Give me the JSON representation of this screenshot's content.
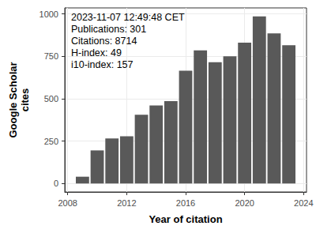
{
  "chart_data": {
    "type": "bar",
    "x": [
      2009,
      2010,
      2011,
      2012,
      2013,
      2014,
      2015,
      2016,
      2017,
      2018,
      2019,
      2020,
      2021,
      2022,
      2023
    ],
    "values": [
      40,
      195,
      265,
      278,
      405,
      460,
      485,
      665,
      785,
      715,
      750,
      830,
      985,
      885,
      815
    ],
    "color": "#595959",
    "xlabel": "Year of citation",
    "ylabel": "Google Scholar\ncites",
    "annotation": [
      "2023-11-07 12:49:48 CET",
      "Publications: 301",
      "Citations: 8714",
      "H-index: 49",
      "i10-index: 157"
    ],
    "xlim": [
      2007.8,
      2024.2
    ],
    "xticks": [
      2008,
      2012,
      2016,
      2020,
      2024
    ],
    "ylim": [
      -50,
      1035
    ],
    "yticks": [
      0,
      250,
      500,
      750,
      1000
    ],
    "grid": true
  }
}
